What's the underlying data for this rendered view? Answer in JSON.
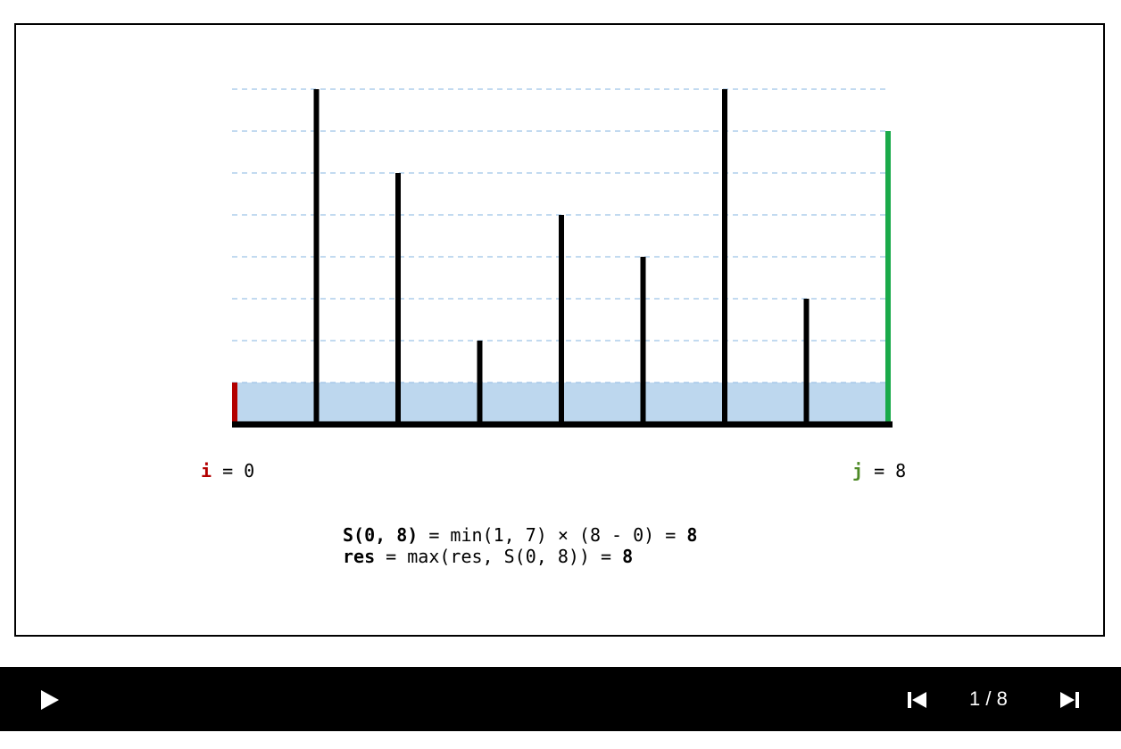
{
  "chart_data": {
    "type": "bar",
    "title": "",
    "xlabel": "",
    "ylabel": "",
    "x": [
      0,
      1,
      2,
      3,
      4,
      5,
      6,
      7,
      8
    ],
    "values": [
      1,
      8,
      6,
      2,
      5,
      4,
      8,
      3,
      7
    ],
    "ylim": [
      0,
      8
    ],
    "grid": true,
    "pointer_i": 0,
    "pointer_j": 8,
    "water_level": 1,
    "colors": {
      "bar": "#000000",
      "pointer_i": "#b30000",
      "pointer_j": "#1aaa4a",
      "water": "#bdd7ee",
      "grid": "#9ec3e6"
    }
  },
  "labels": {
    "i_name": "i",
    "i_rest": " = 0",
    "j_name": "j",
    "j_rest": " = 8"
  },
  "formula": {
    "line1_bold": "S(0, 8)",
    "line1_rest": " = min(1, 7) × (8 - 0) = ",
    "line1_result": "8",
    "line2_bold": "res",
    "line2_rest": " = max(res, S(0, 8)) = ",
    "line2_result": "8"
  },
  "player": {
    "play_icon": "play-icon",
    "prev_icon": "skip-previous-icon",
    "next_icon": "skip-next-icon",
    "step_text": "1 / 8"
  }
}
